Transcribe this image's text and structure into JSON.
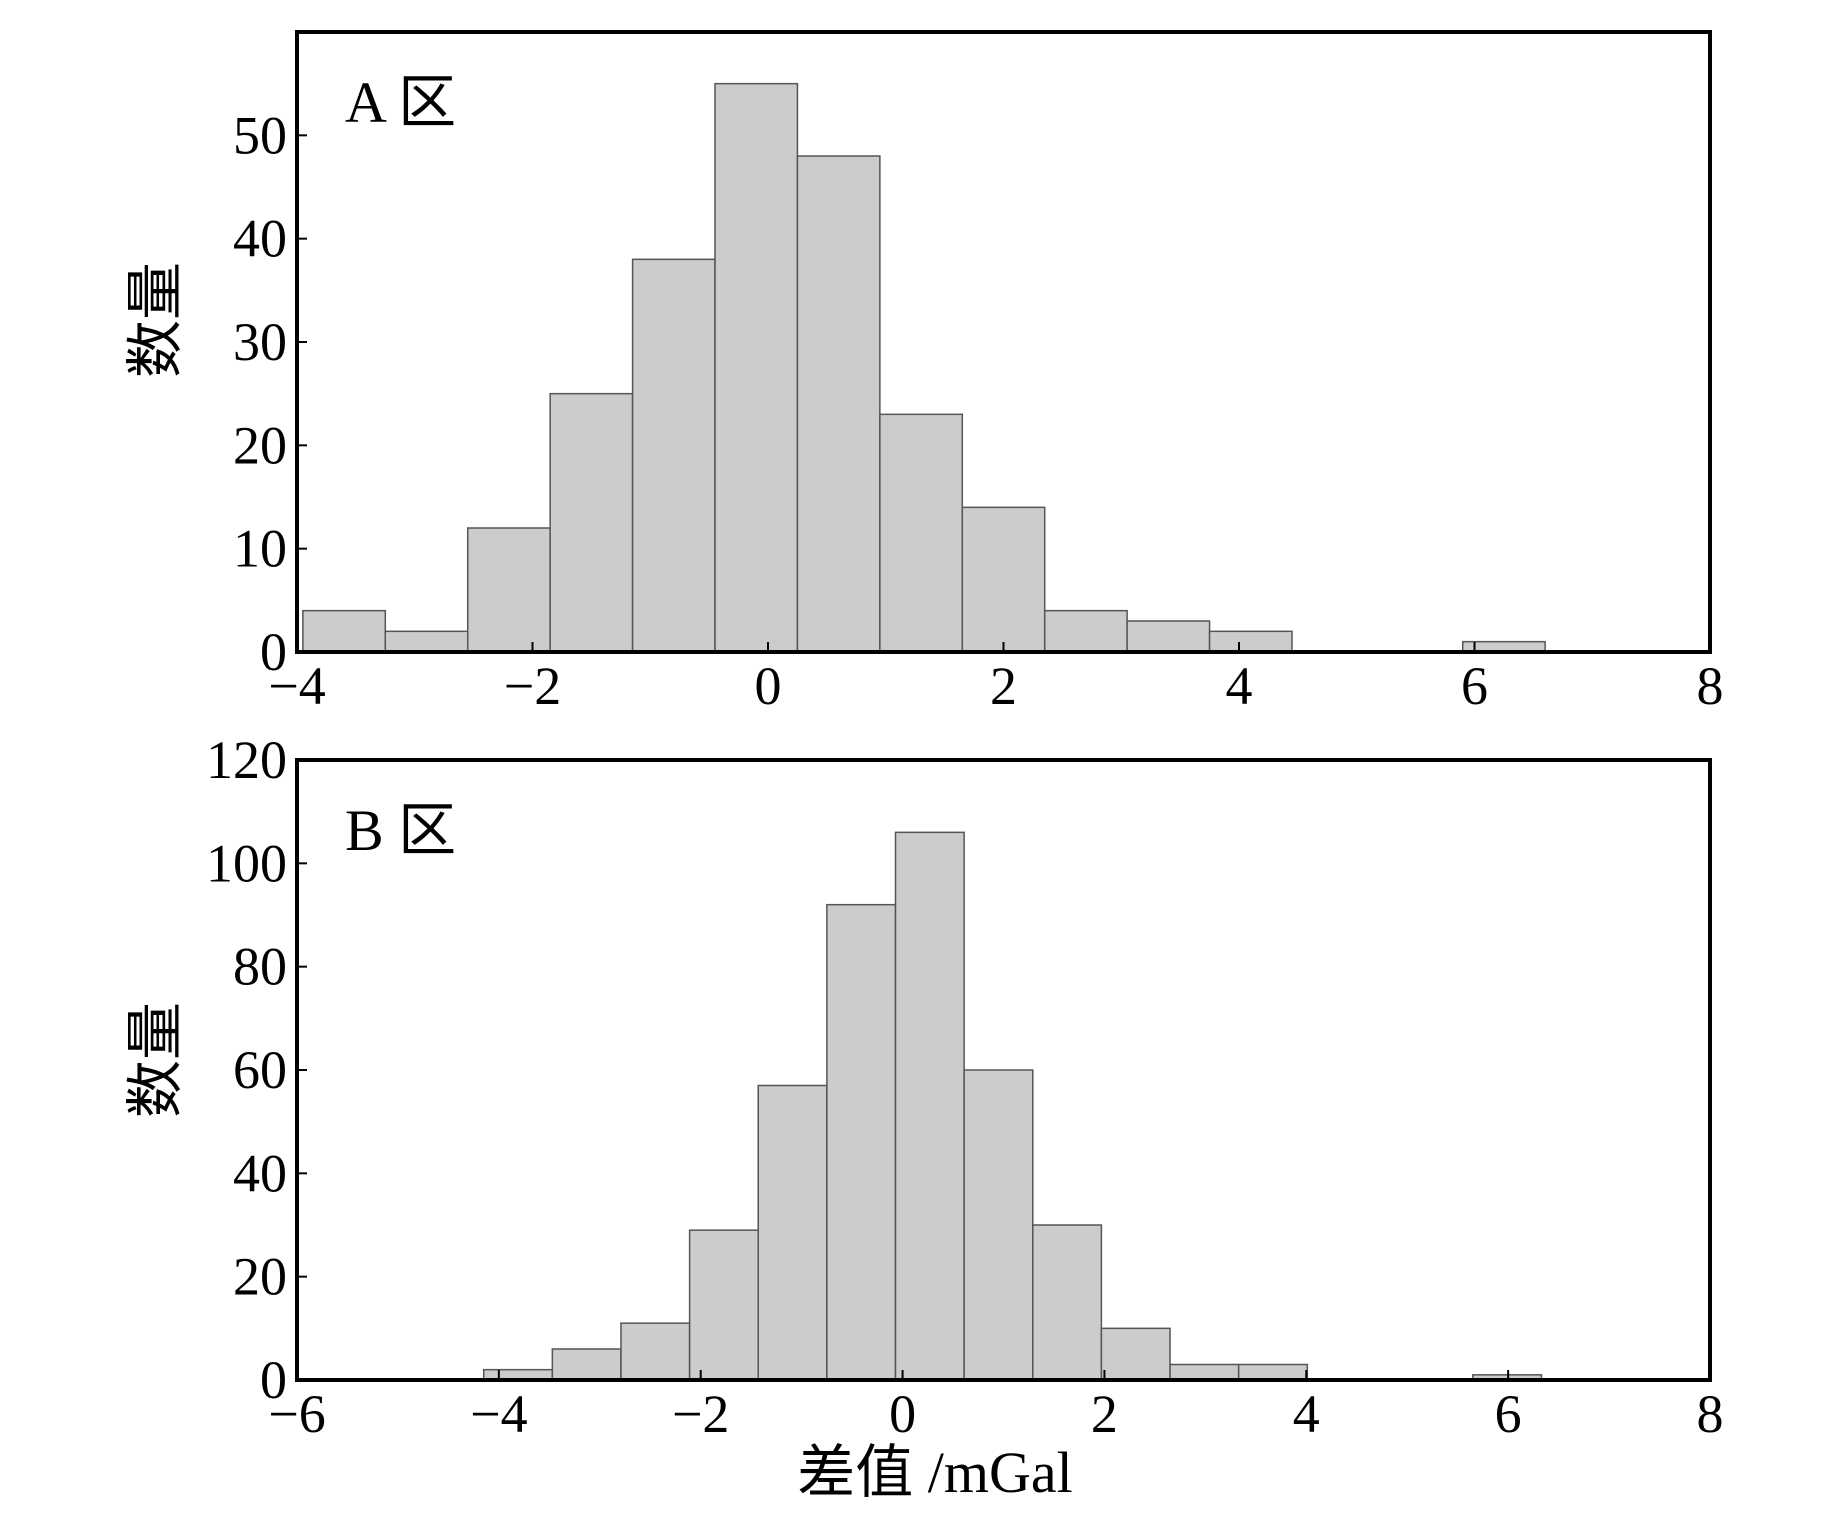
{
  "xlabel": "差值 /mGal",
  "colors": {
    "bar_fill": "#cccccc",
    "bar_stroke": "#555555",
    "axis": "#000000"
  },
  "chart_data": [
    {
      "type": "bar",
      "panel_label": "A 区",
      "ylabel": "数量",
      "xlim": [
        -4,
        8
      ],
      "ylim": [
        0,
        60
      ],
      "xticks": [
        "−4",
        "−2",
        "0",
        "2",
        "4",
        "6",
        "8"
      ],
      "xtick_values": [
        -4,
        -2,
        0,
        2,
        4,
        6,
        8
      ],
      "yticks": [
        "0",
        "10",
        "20",
        "30",
        "40",
        "50"
      ],
      "ytick_values": [
        0,
        10,
        20,
        30,
        40,
        50
      ],
      "bins": [
        {
          "x0": -3.95,
          "x1": -3.25,
          "count": 4
        },
        {
          "x0": -3.25,
          "x1": -2.55,
          "count": 2
        },
        {
          "x0": -2.55,
          "x1": -1.85,
          "count": 12
        },
        {
          "x0": -1.85,
          "x1": -1.15,
          "count": 25
        },
        {
          "x0": -1.15,
          "x1": -0.45,
          "count": 38
        },
        {
          "x0": -0.45,
          "x1": 0.25,
          "count": 55
        },
        {
          "x0": 0.25,
          "x1": 0.95,
          "count": 48
        },
        {
          "x0": 0.95,
          "x1": 1.65,
          "count": 23
        },
        {
          "x0": 1.65,
          "x1": 2.35,
          "count": 14
        },
        {
          "x0": 2.35,
          "x1": 3.05,
          "count": 4
        },
        {
          "x0": 3.05,
          "x1": 3.75,
          "count": 3
        },
        {
          "x0": 3.75,
          "x1": 4.45,
          "count": 2
        },
        {
          "x0": 5.9,
          "x1": 6.6,
          "count": 1
        }
      ]
    },
    {
      "type": "bar",
      "panel_label": "B 区",
      "ylabel": "数量",
      "xlim": [
        -6,
        8
      ],
      "ylim": [
        0,
        120
      ],
      "xticks": [
        "−6",
        "−4",
        "−2",
        "0",
        "2",
        "4",
        "6",
        "8"
      ],
      "xtick_values": [
        -6,
        -4,
        -2,
        0,
        2,
        4,
        6,
        8
      ],
      "yticks": [
        "0",
        "20",
        "40",
        "60",
        "80",
        "100",
        "120"
      ],
      "ytick_values": [
        0,
        20,
        40,
        60,
        80,
        100,
        120
      ],
      "bins": [
        {
          "x0": -4.15,
          "x1": -3.47,
          "count": 2
        },
        {
          "x0": -3.47,
          "x1": -2.79,
          "count": 6
        },
        {
          "x0": -2.79,
          "x1": -2.11,
          "count": 11
        },
        {
          "x0": -2.11,
          "x1": -1.43,
          "count": 29
        },
        {
          "x0": -1.43,
          "x1": -0.75,
          "count": 57
        },
        {
          "x0": -0.75,
          "x1": -0.07,
          "count": 92
        },
        {
          "x0": -0.07,
          "x1": 0.61,
          "count": 106
        },
        {
          "x0": 0.61,
          "x1": 1.29,
          "count": 60
        },
        {
          "x0": 1.29,
          "x1": 1.97,
          "count": 30
        },
        {
          "x0": 1.97,
          "x1": 2.65,
          "count": 10
        },
        {
          "x0": 2.65,
          "x1": 3.33,
          "count": 3
        },
        {
          "x0": 3.33,
          "x1": 4.01,
          "count": 3
        },
        {
          "x0": 5.65,
          "x1": 6.33,
          "count": 1
        }
      ]
    }
  ]
}
